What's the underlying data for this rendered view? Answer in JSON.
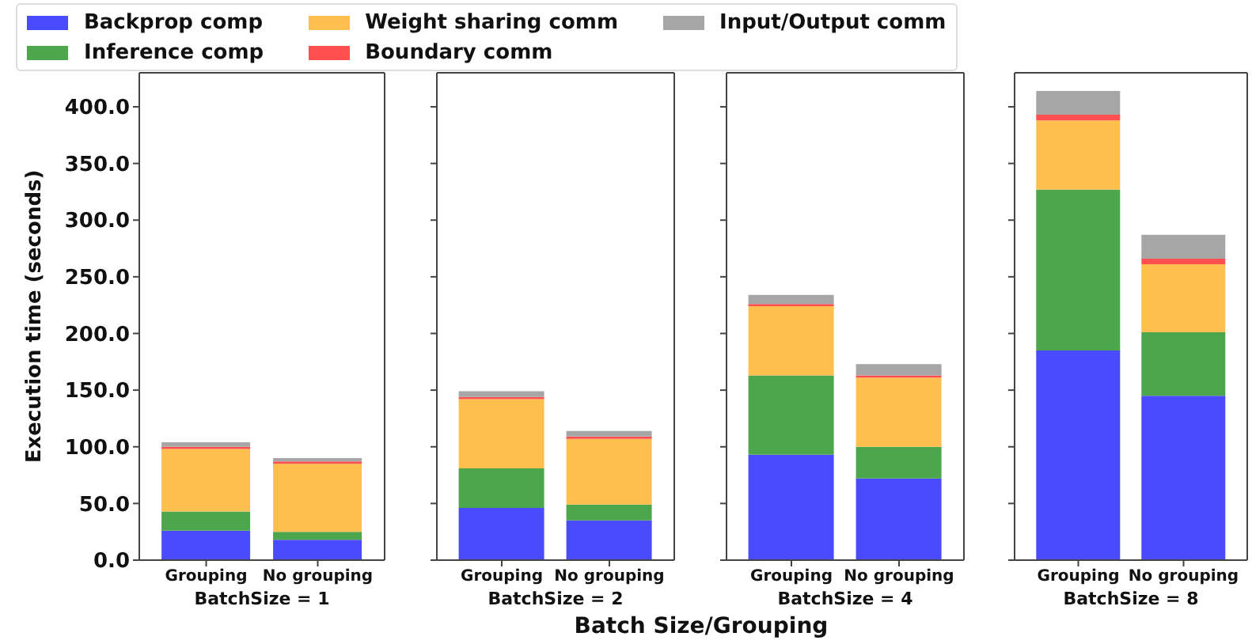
{
  "chart_data": [
    {
      "type": "bar",
      "stacked": true,
      "xlabel": "BatchSize = 1",
      "ylabel": "Execution time (seconds)",
      "categories": [
        "Grouping",
        "No grouping"
      ],
      "ylim": [
        0,
        430
      ],
      "yticks": [
        {
          "value": 0,
          "label": "0.0"
        },
        {
          "value": 50,
          "label": "50.0"
        },
        {
          "value": 100,
          "label": "100.0"
        },
        {
          "value": 150,
          "label": "150.0"
        },
        {
          "value": 200,
          "label": "200.0"
        },
        {
          "value": 250,
          "label": "250.0"
        },
        {
          "value": 300,
          "label": "300.0"
        },
        {
          "value": 350,
          "label": "350.0"
        },
        {
          "value": 400,
          "label": "400.0"
        }
      ],
      "legend": "top",
      "annotations": [
        "Batch Size/Grouping"
      ],
      "series": [
        {
          "name": "Backprop comp",
          "color": "#4a4aff",
          "values": [
            26,
            18
          ]
        },
        {
          "name": "Inference comp",
          "color": "#4ca64c",
          "values": [
            17,
            7
          ]
        },
        {
          "name": "Weight sharing comm",
          "color": "#ffbf4f",
          "values": [
            55,
            60
          ]
        },
        {
          "name": "Boundary comm",
          "color": "#ff4f4f",
          "values": [
            2,
            2
          ]
        },
        {
          "name": "Input/Output comm",
          "color": "#a6a6a6",
          "values": [
            4,
            3
          ]
        }
      ]
    },
    {
      "type": "bar",
      "stacked": true,
      "xlabel": "BatchSize = 2",
      "categories": [
        "Grouping",
        "No grouping"
      ],
      "ylim": [
        0,
        430
      ],
      "yticks": [
        0,
        50,
        100,
        150,
        200,
        250,
        300,
        350,
        400
      ],
      "tick_labels": "x",
      "series": [
        {
          "color": "#4a4aff",
          "values": [
            46,
            35
          ]
        },
        {
          "color": "#4ca64c",
          "values": [
            35,
            14
          ]
        },
        {
          "color": "#ffbf4f",
          "values": [
            61,
            58
          ]
        },
        {
          "color": "#ff4f4f",
          "values": [
            2,
            2
          ]
        },
        {
          "color": "#a6a6a6",
          "values": [
            5,
            5
          ]
        }
      ]
    },
    {
      "type": "bar",
      "stacked": true,
      "xlabel": "BatchSize = 4",
      "categories": [
        "Grouping",
        "No grouping"
      ],
      "ylim": [
        0,
        430
      ],
      "yticks": [
        0,
        50,
        100,
        150,
        200,
        250,
        300,
        350,
        400
      ],
      "tick_labels": "x",
      "series": [
        {
          "color": "#4a4aff",
          "values": [
            93,
            72
          ]
        },
        {
          "color": "#4ca64c",
          "values": [
            70,
            28
          ]
        },
        {
          "color": "#ffbf4f",
          "values": [
            61,
            61
          ]
        },
        {
          "color": "#ff4f4f",
          "values": [
            2,
            2
          ]
        },
        {
          "color": "#a6a6a6",
          "values": [
            8,
            10
          ]
        }
      ]
    },
    {
      "type": "bar",
      "stacked": true,
      "xlabel": "BatchSize = 8",
      "categories": [
        "Grouping",
        "No grouping"
      ],
      "ylim": [
        0,
        430
      ],
      "yticks": [
        0,
        50,
        100,
        150,
        200,
        250,
        300,
        350,
        400
      ],
      "tick_labels": "x",
      "series": [
        {
          "color": "#4a4aff",
          "values": [
            185,
            145
          ]
        },
        {
          "color": "#4ca64c",
          "values": [
            142,
            56
          ]
        },
        {
          "color": "#ffbf4f",
          "values": [
            61,
            60
          ]
        },
        {
          "color": "#ff4f4f",
          "values": [
            5,
            5
          ]
        },
        {
          "color": "#a6a6a6",
          "values": [
            21,
            21
          ]
        }
      ]
    }
  ]
}
